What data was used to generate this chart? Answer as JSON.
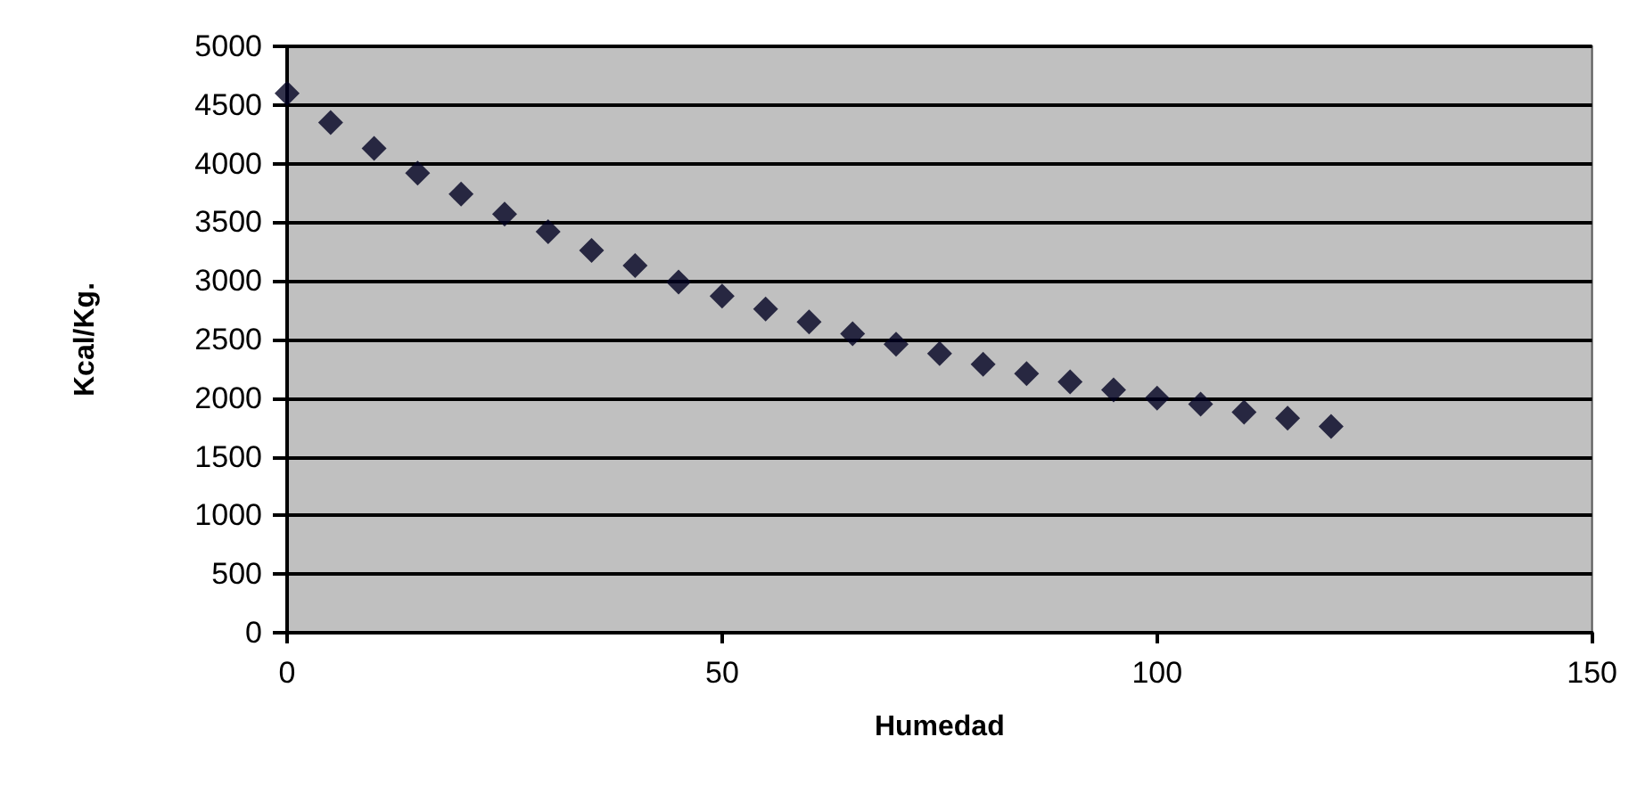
{
  "chart_data": {
    "type": "scatter",
    "xlabel": "Humedad",
    "ylabel": "Kcal/Kg.",
    "x": [
      0,
      5,
      10,
      15,
      20,
      25,
      30,
      35,
      40,
      45,
      50,
      55,
      60,
      65,
      70,
      75,
      80,
      85,
      90,
      95,
      100,
      105,
      110,
      115,
      120
    ],
    "series": [
      {
        "color": "#000020",
        "values": [
          4600,
          4350,
          4130,
          3920,
          3740,
          3570,
          3420,
          3260,
          3130,
          2990,
          2870,
          2760,
          2650,
          2550,
          2460,
          2380,
          2290,
          2210,
          2140,
          2070,
          2000,
          1950,
          1880,
          1830,
          1760
        ]
      }
    ],
    "xlim": [
      0,
      150
    ],
    "xticks": [
      0,
      50,
      100,
      150
    ],
    "ylim": [
      0,
      5000
    ],
    "yticks": [
      0,
      500,
      1000,
      1500,
      2000,
      2500,
      3000,
      3500,
      4000,
      4500,
      5000
    ],
    "grid": "y",
    "marker": "diamond"
  }
}
